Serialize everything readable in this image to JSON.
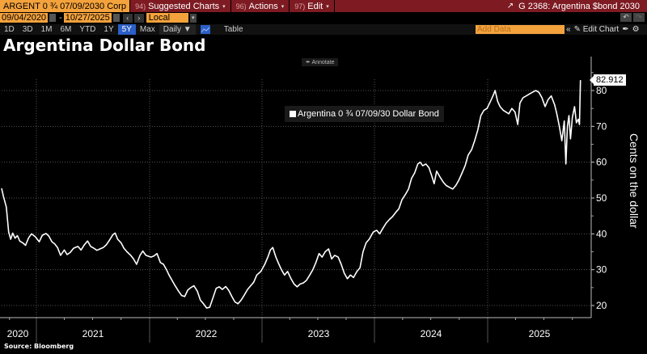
{
  "toolbar": {
    "ticker": "ARGENT 0 ¾ 07/09/2030 Corp",
    "menus": [
      {
        "num": "94)",
        "label": "Suggested Charts"
      },
      {
        "num": "96)",
        "label": "Actions"
      },
      {
        "num": "97)",
        "label": "Edit"
      }
    ],
    "chart_id": "G 2368: Argentina $bond 2030",
    "start_date": "09/04/2020",
    "end_date": "10/27/2025",
    "date_sep": "-",
    "currency": "Local CCY",
    "ranges": [
      "1D",
      "3D",
      "1M",
      "6M",
      "YTD",
      "1Y",
      "5Y",
      "Max"
    ],
    "active_range": "5Y",
    "frequency": "Daily ▼",
    "table_label": "Table",
    "add_data_placeholder": "Add Data",
    "edit_chart_label": "Edit Chart"
  },
  "annotate_label": "Annotate",
  "chart_data": {
    "type": "line",
    "title": "Argentina Dollar Bond",
    "ylabel": "Cents on the dollar",
    "xlabel": "",
    "ylim": [
      17,
      85
    ],
    "yticks": [
      20,
      30,
      40,
      50,
      60,
      70,
      80
    ],
    "xticks": [
      "2020",
      "2021",
      "2022",
      "2023",
      "2024",
      "2025"
    ],
    "legend": "Argentina 0 ¾ 07/09/30 Dollar Bond",
    "last_value": "82.912",
    "source": "Source: Bloomberg",
    "series": [
      {
        "name": "Argentina 0 ¾ 07/09/30 Dollar Bond",
        "color": "#ffffff",
        "points": [
          [
            "2020-09-04",
            52.7
          ],
          [
            "2020-09-10",
            50.5
          ],
          [
            "2020-09-20",
            47.5
          ],
          [
            "2020-09-28",
            40.5
          ],
          [
            "2020-10-05",
            38.5
          ],
          [
            "2020-10-12",
            40.2
          ],
          [
            "2020-10-20",
            38.8
          ],
          [
            "2020-10-28",
            39.5
          ],
          [
            "2020-11-05",
            38.0
          ],
          [
            "2020-11-15",
            37.5
          ],
          [
            "2020-11-25",
            36.8
          ],
          [
            "2020-12-05",
            38.8
          ],
          [
            "2020-12-15",
            40.0
          ],
          [
            "2020-12-28",
            39.2
          ],
          [
            "2021-01-10",
            37.8
          ],
          [
            "2021-01-20",
            39.6
          ],
          [
            "2021-02-01",
            40.1
          ],
          [
            "2021-02-10",
            39.4
          ],
          [
            "2021-02-20",
            37.8
          ],
          [
            "2021-03-01",
            37.2
          ],
          [
            "2021-03-10",
            36.2
          ],
          [
            "2021-03-20",
            34.0
          ],
          [
            "2021-04-01",
            35.5
          ],
          [
            "2021-04-10",
            34.2
          ],
          [
            "2021-04-20",
            34.8
          ],
          [
            "2021-05-01",
            36.0
          ],
          [
            "2021-05-15",
            36.5
          ],
          [
            "2021-05-25",
            35.5
          ],
          [
            "2021-06-05",
            37.0
          ],
          [
            "2021-06-15",
            38.0
          ],
          [
            "2021-06-25",
            36.5
          ],
          [
            "2021-07-05",
            36.0
          ],
          [
            "2021-07-15",
            35.4
          ],
          [
            "2021-07-25",
            35.8
          ],
          [
            "2021-08-05",
            36.2
          ],
          [
            "2021-08-15",
            37.0
          ],
          [
            "2021-08-25",
            38.3
          ],
          [
            "2021-09-05",
            39.8
          ],
          [
            "2021-09-12",
            40.2
          ],
          [
            "2021-09-20",
            38.5
          ],
          [
            "2021-10-01",
            37.5
          ],
          [
            "2021-10-10",
            36.0
          ],
          [
            "2021-10-20",
            35.0
          ],
          [
            "2021-11-01",
            34.0
          ],
          [
            "2021-11-10",
            33.0
          ],
          [
            "2021-11-20",
            31.5
          ],
          [
            "2021-12-01",
            34.0
          ],
          [
            "2021-12-10",
            35.2
          ],
          [
            "2021-12-20",
            34.0
          ],
          [
            "2022-01-05",
            33.5
          ],
          [
            "2022-01-15",
            33.8
          ],
          [
            "2022-01-25",
            34.5
          ],
          [
            "2022-02-05",
            32.0
          ],
          [
            "2022-02-15",
            31.5
          ],
          [
            "2022-02-25",
            30.0
          ],
          [
            "2022-03-05",
            28.5
          ],
          [
            "2022-03-15",
            27.0
          ],
          [
            "2022-03-25",
            25.5
          ],
          [
            "2022-04-05",
            24.0
          ],
          [
            "2022-04-15",
            22.8
          ],
          [
            "2022-04-25",
            22.5
          ],
          [
            "2022-05-05",
            24.3
          ],
          [
            "2022-05-15",
            25.0
          ],
          [
            "2022-05-25",
            25.5
          ],
          [
            "2022-06-05",
            24.0
          ],
          [
            "2022-06-15",
            21.5
          ],
          [
            "2022-06-25",
            20.5
          ],
          [
            "2022-07-05",
            19.3
          ],
          [
            "2022-07-15",
            19.5
          ],
          [
            "2022-07-25",
            22.0
          ],
          [
            "2022-08-05",
            24.8
          ],
          [
            "2022-08-15",
            25.2
          ],
          [
            "2022-08-25",
            24.5
          ],
          [
            "2022-09-05",
            25.3
          ],
          [
            "2022-09-15",
            24.2
          ],
          [
            "2022-09-25",
            22.5
          ],
          [
            "2022-10-05",
            21.0
          ],
          [
            "2022-10-15",
            20.5
          ],
          [
            "2022-10-25",
            21.5
          ],
          [
            "2022-11-05",
            23.0
          ],
          [
            "2022-11-15",
            24.5
          ],
          [
            "2022-11-25",
            25.5
          ],
          [
            "2022-12-05",
            26.5
          ],
          [
            "2022-12-15",
            28.5
          ],
          [
            "2022-12-28",
            29.5
          ],
          [
            "2023-01-10",
            31.5
          ],
          [
            "2023-01-20",
            33.5
          ],
          [
            "2023-01-28",
            35.5
          ],
          [
            "2023-02-05",
            36.2
          ],
          [
            "2023-02-15",
            33.5
          ],
          [
            "2023-02-25",
            31.5
          ],
          [
            "2023-03-05",
            30.0
          ],
          [
            "2023-03-15",
            28.5
          ],
          [
            "2023-03-25",
            29.5
          ],
          [
            "2023-04-05",
            27.5
          ],
          [
            "2023-04-15",
            26.0
          ],
          [
            "2023-04-25",
            25.2
          ],
          [
            "2023-05-05",
            26.0
          ],
          [
            "2023-05-15",
            26.3
          ],
          [
            "2023-05-25",
            27.0
          ],
          [
            "2023-06-05",
            28.5
          ],
          [
            "2023-06-15",
            30.0
          ],
          [
            "2023-06-25",
            32.0
          ],
          [
            "2023-07-05",
            34.5
          ],
          [
            "2023-07-15",
            33.5
          ],
          [
            "2023-07-25",
            35.0
          ],
          [
            "2023-08-05",
            35.8
          ],
          [
            "2023-08-15",
            33.0
          ],
          [
            "2023-08-25",
            34.0
          ],
          [
            "2023-09-05",
            33.5
          ],
          [
            "2023-09-15",
            31.5
          ],
          [
            "2023-09-25",
            29.0
          ],
          [
            "2023-10-05",
            27.5
          ],
          [
            "2023-10-15",
            28.5
          ],
          [
            "2023-10-25",
            27.8
          ],
          [
            "2023-11-05",
            29.5
          ],
          [
            "2023-11-15",
            30.5
          ],
          [
            "2023-11-25",
            35.0
          ],
          [
            "2023-12-05",
            37.5
          ],
          [
            "2023-12-15",
            38.5
          ],
          [
            "2023-12-28",
            40.5
          ],
          [
            "2024-01-08",
            41.0
          ],
          [
            "2024-01-18",
            40.0
          ],
          [
            "2024-01-28",
            41.5
          ],
          [
            "2024-02-08",
            43.0
          ],
          [
            "2024-02-18",
            44.0
          ],
          [
            "2024-02-28",
            44.8
          ],
          [
            "2024-03-10",
            46.0
          ],
          [
            "2024-03-20",
            47.0
          ],
          [
            "2024-03-30",
            49.5
          ],
          [
            "2024-04-10",
            51.0
          ],
          [
            "2024-04-20",
            52.5
          ],
          [
            "2024-04-30",
            55.5
          ],
          [
            "2024-05-10",
            57.0
          ],
          [
            "2024-05-20",
            59.5
          ],
          [
            "2024-05-28",
            60.0
          ],
          [
            "2024-06-05",
            59.0
          ],
          [
            "2024-06-15",
            59.5
          ],
          [
            "2024-06-25",
            58.5
          ],
          [
            "2024-07-05",
            56.0
          ],
          [
            "2024-07-12",
            54.0
          ],
          [
            "2024-07-20",
            57.5
          ],
          [
            "2024-07-30",
            56.0
          ],
          [
            "2024-08-10",
            54.5
          ],
          [
            "2024-08-20",
            53.5
          ],
          [
            "2024-08-30",
            53.0
          ],
          [
            "2024-09-10",
            52.5
          ],
          [
            "2024-09-20",
            53.5
          ],
          [
            "2024-09-30",
            55.0
          ],
          [
            "2024-10-10",
            57.0
          ],
          [
            "2024-10-20",
            59.0
          ],
          [
            "2024-10-30",
            62.0
          ],
          [
            "2024-11-10",
            63.5
          ],
          [
            "2024-11-20",
            66.0
          ],
          [
            "2024-11-30",
            69.0
          ],
          [
            "2024-12-10",
            73.0
          ],
          [
            "2024-12-20",
            74.5
          ],
          [
            "2024-12-30",
            75.0
          ],
          [
            "2025-01-10",
            77.0
          ],
          [
            "2025-01-18",
            78.5
          ],
          [
            "2025-01-25",
            80.0
          ],
          [
            "2025-02-02",
            77.0
          ],
          [
            "2025-02-10",
            75.5
          ],
          [
            "2025-02-20",
            74.5
          ],
          [
            "2025-03-01",
            74.0
          ],
          [
            "2025-03-10",
            73.5
          ],
          [
            "2025-03-20",
            75.0
          ],
          [
            "2025-03-30",
            74.0
          ],
          [
            "2025-04-08",
            70.5
          ],
          [
            "2025-04-15",
            76.5
          ],
          [
            "2025-04-25",
            78.0
          ],
          [
            "2025-05-05",
            78.5
          ],
          [
            "2025-05-15",
            79.0
          ],
          [
            "2025-05-25",
            79.5
          ],
          [
            "2025-06-05",
            80.0
          ],
          [
            "2025-06-15",
            79.5
          ],
          [
            "2025-06-25",
            78.0
          ],
          [
            "2025-07-05",
            75.5
          ],
          [
            "2025-07-15",
            77.5
          ],
          [
            "2025-07-25",
            78.5
          ],
          [
            "2025-08-05",
            76.0
          ],
          [
            "2025-08-12",
            73.5
          ],
          [
            "2025-08-20",
            70.0
          ],
          [
            "2025-08-28",
            66.0
          ],
          [
            "2025-09-05",
            71.5
          ],
          [
            "2025-09-10",
            59.5
          ],
          [
            "2025-09-15",
            70.0
          ],
          [
            "2025-09-20",
            73.0
          ],
          [
            "2025-09-25",
            66.5
          ],
          [
            "2025-10-01",
            72.5
          ],
          [
            "2025-10-08",
            75.5
          ],
          [
            "2025-10-14",
            71.0
          ],
          [
            "2025-10-20",
            72.0
          ],
          [
            "2025-10-24",
            70.5
          ],
          [
            "2025-10-27",
            82.912
          ]
        ]
      }
    ]
  }
}
